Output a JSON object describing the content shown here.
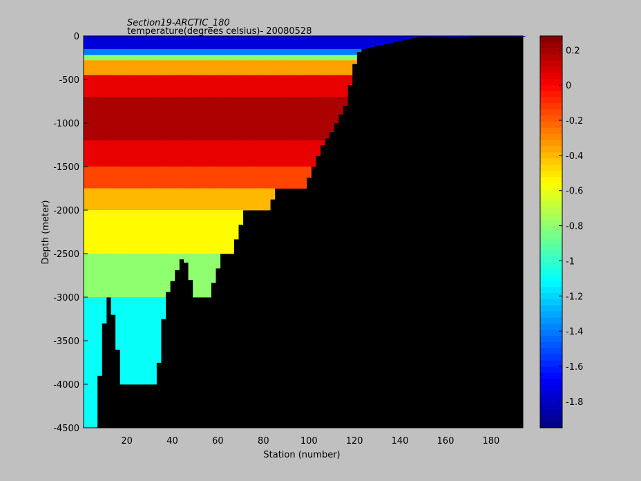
{
  "chart_data": {
    "type": "heatmap",
    "title": "Section19-ARCTIC_180",
    "subtitle": "temperature(degrees  celsius)- 20080528",
    "xlabel": "Station (number)",
    "ylabel": "Depth (meter)",
    "xlim": [
      1,
      194
    ],
    "ylim": [
      -4500,
      0
    ],
    "x_ticks": [
      "20",
      "40",
      "60",
      "80",
      "100",
      "120",
      "140",
      "160",
      "180"
    ],
    "x_tick_values": [
      20,
      40,
      60,
      80,
      100,
      120,
      140,
      160,
      180
    ],
    "y_ticks": [
      "0",
      "-500",
      "-1000",
      "-1500",
      "-2000",
      "-2500",
      "-3000",
      "-3500",
      "-4000",
      "-4500"
    ],
    "y_tick_values": [
      0,
      -500,
      -1000,
      -1500,
      -2000,
      -2500,
      -3000,
      -3500,
      -4000,
      -4500
    ],
    "colorbar": {
      "range": [
        -1.95,
        0.28
      ],
      "ticks": [
        "0.2",
        "0",
        "-0.2",
        "-0.4",
        "-0.6",
        "-0.8",
        "-1",
        "-1.2",
        "-1.4",
        "-1.6",
        "-1.8"
      ],
      "tick_values": [
        0.2,
        0,
        -0.2,
        -0.4,
        -0.6,
        -0.8,
        -1,
        -1.2,
        -1.4,
        -1.6,
        -1.8
      ],
      "colormap": "jet"
    },
    "background_color": "#000000",
    "bottom_depth_profile": {
      "stations": [
        1,
        6,
        11,
        13,
        18,
        24,
        33,
        37,
        45,
        50,
        56,
        62,
        66,
        72,
        78,
        82,
        86,
        90,
        94,
        98,
        102,
        106,
        110,
        116,
        121,
        124,
        130,
        136,
        142,
        148,
        152,
        156,
        165,
        172
      ],
      "depth": [
        -4500,
        -4500,
        -3000,
        -3000,
        -4000,
        -4000,
        -4000,
        -3000,
        -2500,
        -3000,
        -3000,
        -2500,
        -2500,
        -2000,
        -2000,
        -2000,
        -1750,
        -1750,
        -1750,
        -1750,
        -1500,
        -1250,
        -1100,
        -800,
        -200,
        -150,
        -110,
        -80,
        -40,
        -15,
        -5,
        -10,
        -15,
        -5
      ]
    },
    "temperature_layers": [
      {
        "depth_range": [
          0,
          -150
        ],
        "temperature": -1.75
      },
      {
        "depth_range": [
          -150,
          -220
        ],
        "temperature": -1.4
      },
      {
        "depth_range": [
          -220,
          -280
        ],
        "temperature": -0.8
      },
      {
        "depth_range": [
          -280,
          -450
        ],
        "temperature": -0.35
      },
      {
        "depth_range": [
          -450,
          -700
        ],
        "temperature": 0.05
      },
      {
        "depth_range": [
          -700,
          -1200
        ],
        "temperature": 0.18
      },
      {
        "depth_range": [
          -1200,
          -1500
        ],
        "temperature": 0.05
      },
      {
        "depth_range": [
          -1500,
          -1750
        ],
        "temperature": -0.15
      },
      {
        "depth_range": [
          -1750,
          -2000
        ],
        "temperature": -0.4
      },
      {
        "depth_range": [
          -2000,
          -2500
        ],
        "temperature": -0.55
      },
      {
        "depth_range": [
          -2500,
          -3000
        ],
        "temperature": -0.8
      },
      {
        "depth_range": [
          -3000,
          -4500
        ],
        "temperature": -1.1
      }
    ]
  }
}
